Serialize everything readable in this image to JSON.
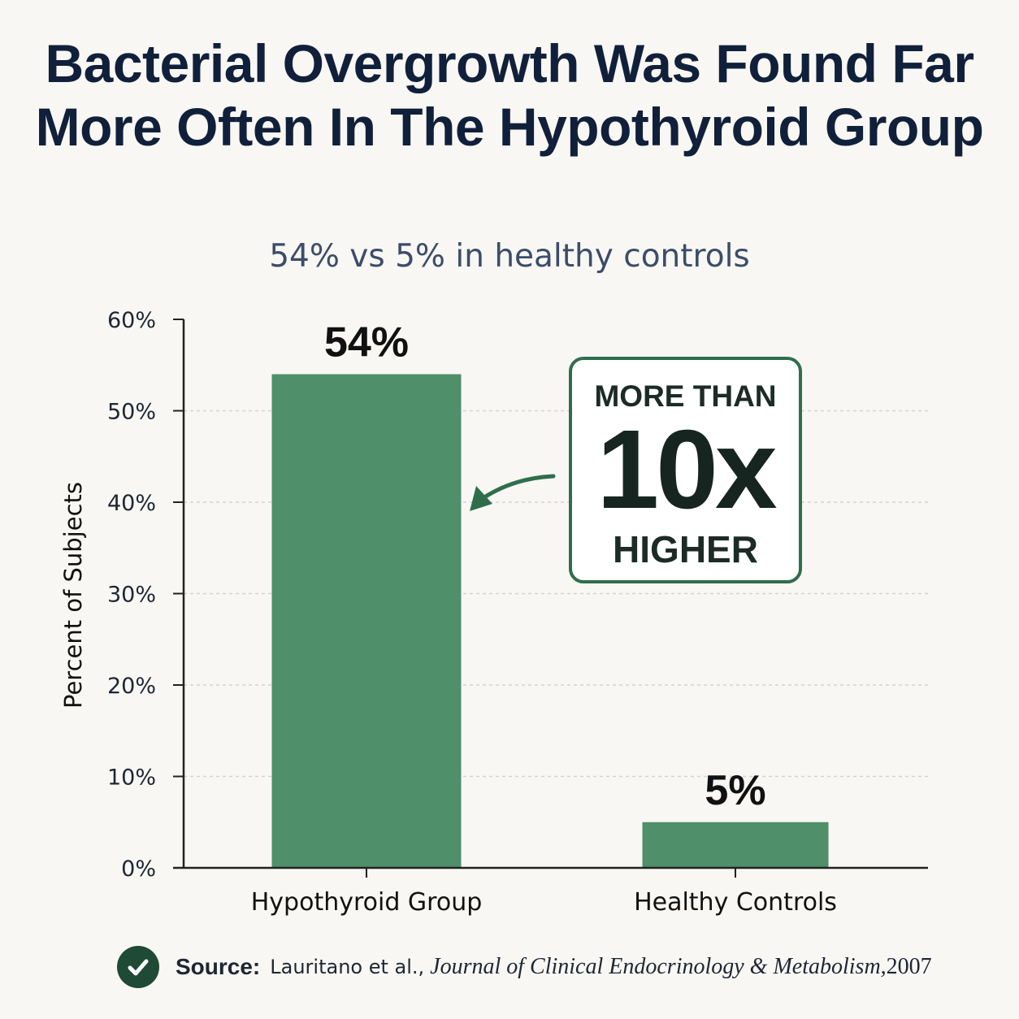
{
  "title": "Bacterial Overgrowth Was Found Far More Often In The Hypothyroid Group",
  "subtitle": "54% vs 5% in healthy controls",
  "colors": {
    "bar": "#4f8f69",
    "accent": "#2f6e4c",
    "text": "#11203a"
  },
  "chart_data": {
    "type": "bar",
    "categories": [
      "Hypothyroid Group",
      "Healthy Controls"
    ],
    "values": [
      54,
      5
    ],
    "value_labels": [
      "54%",
      "5%"
    ],
    "ylabel": "Percent of Subjects",
    "ylim": [
      0,
      60
    ],
    "yticks": [
      0,
      10,
      20,
      30,
      40,
      50,
      60
    ],
    "ytick_labels": [
      "0%",
      "10%",
      "20%",
      "30%",
      "40%",
      "50%",
      "60%"
    ],
    "grid": true
  },
  "callout": {
    "line1": "MORE THAN",
    "line2": "10x",
    "line3": "HIGHER"
  },
  "source": {
    "label": "Source:",
    "authors": "Lauritano et al.,",
    "journal": "Journal of Clinical Endocrinology & Metabolism,",
    "year": "2007",
    "icon": "check-circle-icon"
  }
}
